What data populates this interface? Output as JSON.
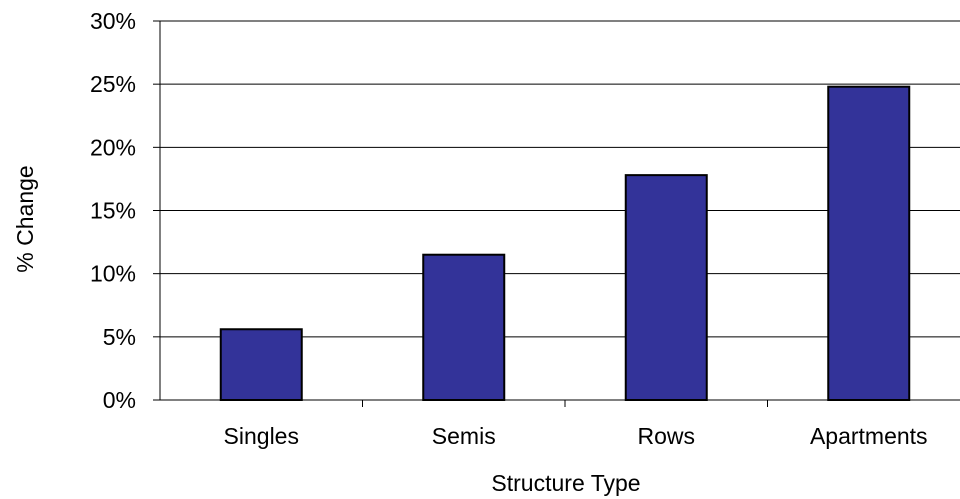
{
  "chart_data": {
    "type": "bar",
    "categories": [
      "Singles",
      "Semis",
      "Rows",
      "Apartments"
    ],
    "series": [
      {
        "values": [
          5.6,
          11.5,
          17.8,
          24.8
        ]
      }
    ],
    "y_tick_values": [
      0,
      5,
      10,
      15,
      20,
      25,
      30
    ],
    "y_tick_labels": [
      "0%",
      "5%",
      "10%",
      "15%",
      "20%",
      "25%",
      "30%"
    ],
    "ylim": [
      0,
      30
    ],
    "xlabel": "Structure Type",
    "ylabel": "% Change",
    "grid": "horizontal",
    "legend": "none",
    "bar_color": "#333399",
    "bar_border_color": "#000000"
  }
}
